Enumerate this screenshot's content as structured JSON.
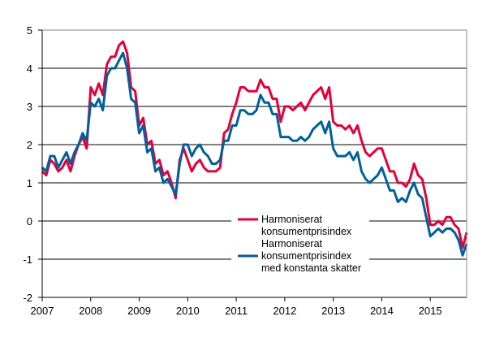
{
  "chart_data": {
    "type": "line",
    "title": "",
    "xlabel": "",
    "ylabel": "",
    "ylim": [
      -2,
      5
    ],
    "yticks": [
      "-2",
      "-1",
      "0",
      "1",
      "2",
      "3",
      "4",
      "5"
    ],
    "xticks": [
      "2007",
      "2008",
      "2009",
      "2010",
      "2011",
      "2012",
      "2013",
      "2014",
      "2015"
    ],
    "x_start": "2007-01",
    "x_frequency": "monthly",
    "grid": "horizontal",
    "legend": "bottom-center",
    "series": [
      {
        "name_lines": [
          "Harmoniserat",
          "konsumentprisindex"
        ],
        "color": "#e4003a",
        "values": [
          1.3,
          1.2,
          1.6,
          1.5,
          1.3,
          1.4,
          1.6,
          1.3,
          1.7,
          2.0,
          2.2,
          1.9,
          3.5,
          3.3,
          3.6,
          3.3,
          4.1,
          4.3,
          4.3,
          4.6,
          4.7,
          4.4,
          3.5,
          3.4,
          2.5,
          2.7,
          2.0,
          2.1,
          1.5,
          1.6,
          1.2,
          1.3,
          1.0,
          0.6,
          1.6,
          1.9,
          1.6,
          1.3,
          1.5,
          1.6,
          1.4,
          1.3,
          1.3,
          1.3,
          1.4,
          2.3,
          2.4,
          2.8,
          3.1,
          3.5,
          3.5,
          3.4,
          3.4,
          3.4,
          3.7,
          3.5,
          3.5,
          3.2,
          3.2,
          2.6,
          3.0,
          3.0,
          2.9,
          3.0,
          3.1,
          2.9,
          3.1,
          3.3,
          3.4,
          3.5,
          3.2,
          3.5,
          2.6,
          2.5,
          2.5,
          2.4,
          2.5,
          2.3,
          2.5,
          2.1,
          1.8,
          1.7,
          1.8,
          1.9,
          1.9,
          1.6,
          1.3,
          1.3,
          1.0,
          1.0,
          0.9,
          1.1,
          1.5,
          1.2,
          1.1,
          0.6,
          -0.1,
          -0.1,
          0.0,
          -0.1,
          0.1,
          0.1,
          -0.1,
          -0.2,
          -0.7,
          -0.3
        ]
      },
      {
        "name_lines": [
          "Harmoniserat",
          "konsumentprisindex",
          "med konstanta skatter"
        ],
        "color": "#00609c",
        "values": [
          1.4,
          1.3,
          1.7,
          1.7,
          1.4,
          1.6,
          1.8,
          1.5,
          1.8,
          2.0,
          2.3,
          2.1,
          3.1,
          3.0,
          3.2,
          2.9,
          3.8,
          4.0,
          4.0,
          4.2,
          4.4,
          4.0,
          3.2,
          3.1,
          2.3,
          2.5,
          1.8,
          1.9,
          1.3,
          1.4,
          1.0,
          1.1,
          0.9,
          0.7,
          1.5,
          2.0,
          2.0,
          1.7,
          1.9,
          2.0,
          1.8,
          1.7,
          1.5,
          1.5,
          1.6,
          2.1,
          2.1,
          2.5,
          2.5,
          2.9,
          2.9,
          2.8,
          2.8,
          2.9,
          3.3,
          3.1,
          3.1,
          2.8,
          2.8,
          2.2,
          2.2,
          2.2,
          2.1,
          2.1,
          2.2,
          2.1,
          2.2,
          2.4,
          2.5,
          2.6,
          2.3,
          2.6,
          1.9,
          1.7,
          1.7,
          1.7,
          1.8,
          1.6,
          1.8,
          1.3,
          1.1,
          1.0,
          1.1,
          1.2,
          1.4,
          1.1,
          0.8,
          0.8,
          0.5,
          0.6,
          0.5,
          0.8,
          1.0,
          0.7,
          0.6,
          0.1,
          -0.4,
          -0.3,
          -0.2,
          -0.3,
          -0.2,
          -0.2,
          -0.3,
          -0.5,
          -0.9,
          -0.6
        ]
      }
    ]
  }
}
